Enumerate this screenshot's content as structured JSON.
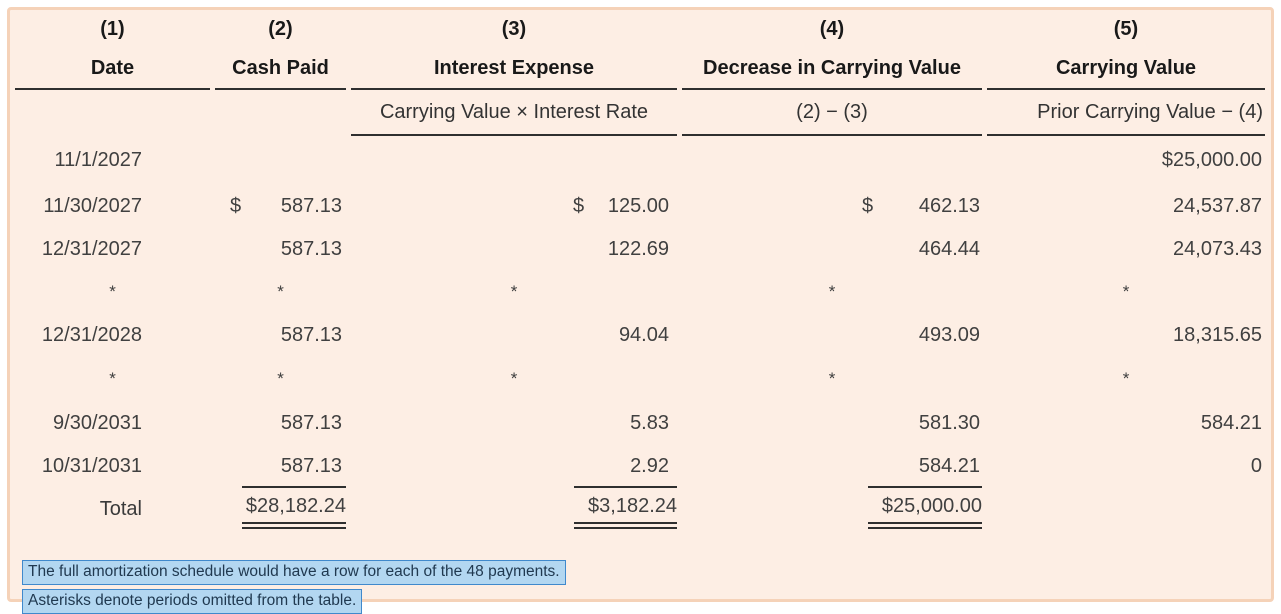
{
  "panel": {
    "background_color": "#fdeee4",
    "border_color": "#f5d2b8",
    "rule_color": "#2f2f2f"
  },
  "table": {
    "column_numbers": [
      "(1)",
      "(2)",
      "(3)",
      "(4)",
      "(5)"
    ],
    "column_labels": [
      "Date",
      "Cash Paid",
      "Interest Expense",
      "Decrease in Carrying Value",
      "Carrying Value"
    ],
    "column_formulas": {
      "interest_expense": "Carrying Value × Interest Rate",
      "decrease_in_carrying_value": "(2) − (3)",
      "carrying_value": "Prior Carrying Value − (4)"
    },
    "rows": [
      {
        "date": "11/1/2027",
        "carrying": "$25,000.00"
      },
      {
        "date": "11/30/2027",
        "cash_currency": "$",
        "cash": "587.13",
        "interest_currency": "$",
        "interest": "125.00",
        "decrease_currency": "$",
        "decrease": "462.13",
        "carrying": "24,537.87"
      },
      {
        "date": "12/31/2027",
        "cash": "587.13",
        "interest": "122.69",
        "decrease": "464.44",
        "carrying": "24,073.43"
      },
      {
        "date": "*",
        "cash": "*",
        "interest": "*",
        "decrease": "*",
        "carrying": "*"
      },
      {
        "date": "12/31/2028",
        "cash": "587.13",
        "interest": "94.04",
        "decrease": "493.09",
        "carrying": "18,315.65"
      },
      {
        "date": "*",
        "cash": "*",
        "interest": "*",
        "decrease": "*",
        "carrying": "*"
      },
      {
        "date": "9/30/2031",
        "cash": "587.13",
        "interest": "5.83",
        "decrease": "581.30",
        "carrying": "584.21"
      },
      {
        "date": "10/31/2031",
        "cash": "587.13",
        "interest": "2.92",
        "decrease": "584.21",
        "carrying": "0"
      }
    ],
    "total": {
      "label": "Total",
      "cash": "$28,182.24",
      "interest": "$3,182.24",
      "decrease": "$25,000.00"
    }
  },
  "footnotes": [
    "The full amortization schedule would have a row for each of the 48 payments.",
    "Asterisks denote periods omitted from the table."
  ],
  "highlight": {
    "background": "#b3d7f1",
    "border": "#4089cc",
    "text_color": "#203950"
  }
}
